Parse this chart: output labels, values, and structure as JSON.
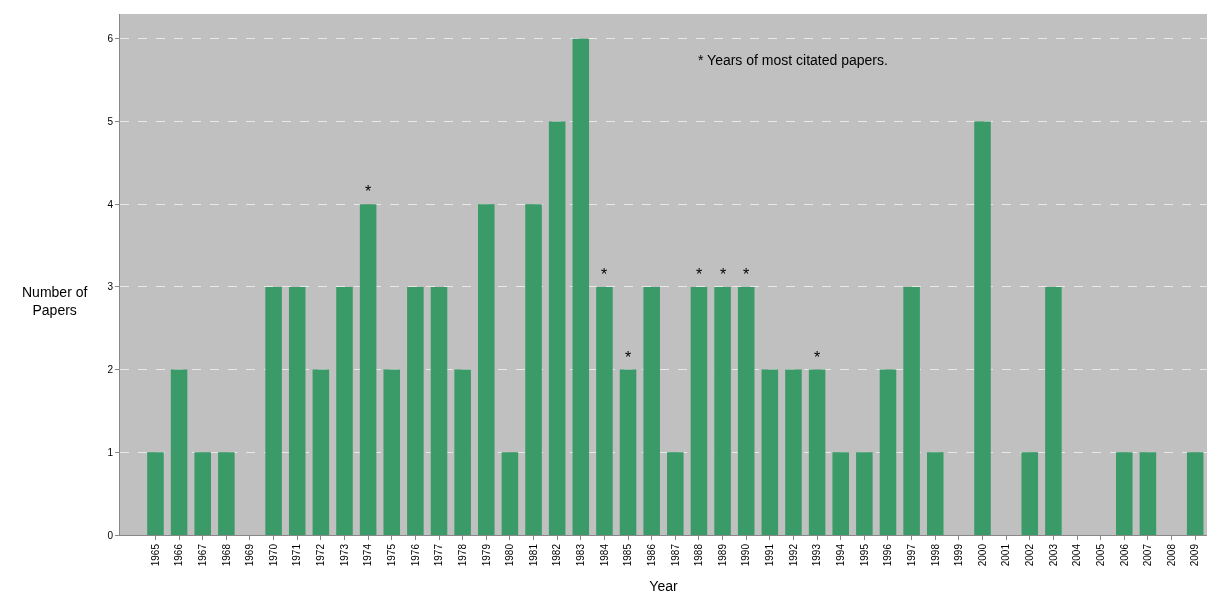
{
  "chart_data": {
    "type": "bar",
    "categories": [
      "1965",
      "1966",
      "1967",
      "1968",
      "1969",
      "1970",
      "1971",
      "1972",
      "1973",
      "1974",
      "1975",
      "1976",
      "1977",
      "1978",
      "1979",
      "1980",
      "1981",
      "1982",
      "1983",
      "1984",
      "1985",
      "1986",
      "1987",
      "1988",
      "1989",
      "1990",
      "1991",
      "1992",
      "1993",
      "1994",
      "1995",
      "1996",
      "1997",
      "1998",
      "1999",
      "2000",
      "2001",
      "2002",
      "2003",
      "2004",
      "2005",
      "2006",
      "2007",
      "2008",
      "2009"
    ],
    "values": [
      1,
      2,
      1,
      1,
      0,
      3,
      3,
      2,
      3,
      4,
      2,
      3,
      3,
      2,
      4,
      1,
      4,
      5,
      6,
      3,
      2,
      3,
      1,
      3,
      3,
      3,
      2,
      2,
      2,
      1,
      1,
      2,
      3,
      1,
      0,
      5,
      0,
      1,
      3,
      0,
      0,
      1,
      1,
      0,
      1
    ],
    "color": "#3a9a68",
    "xlabel": "Year",
    "ylabel": "Number of\nPapers",
    "ylim": [
      0,
      6.3
    ],
    "yticks": [
      0,
      1,
      2,
      3,
      4,
      5,
      6
    ],
    "grid": "y",
    "annotations": [
      "* Years of most citated papers.",
      {
        "text": "*",
        "x": "1974",
        "y": 4
      },
      {
        "text": "*",
        "x": "1984",
        "y": 3
      },
      {
        "text": "*",
        "x": "1985",
        "y": 2
      },
      {
        "text": "*",
        "x": "1988",
        "y": 3
      },
      {
        "text": "*",
        "x": "1989",
        "y": 3
      },
      {
        "text": "*",
        "x": "1990",
        "y": 3
      },
      {
        "text": "*",
        "x": "1993",
        "y": 2
      }
    ]
  }
}
